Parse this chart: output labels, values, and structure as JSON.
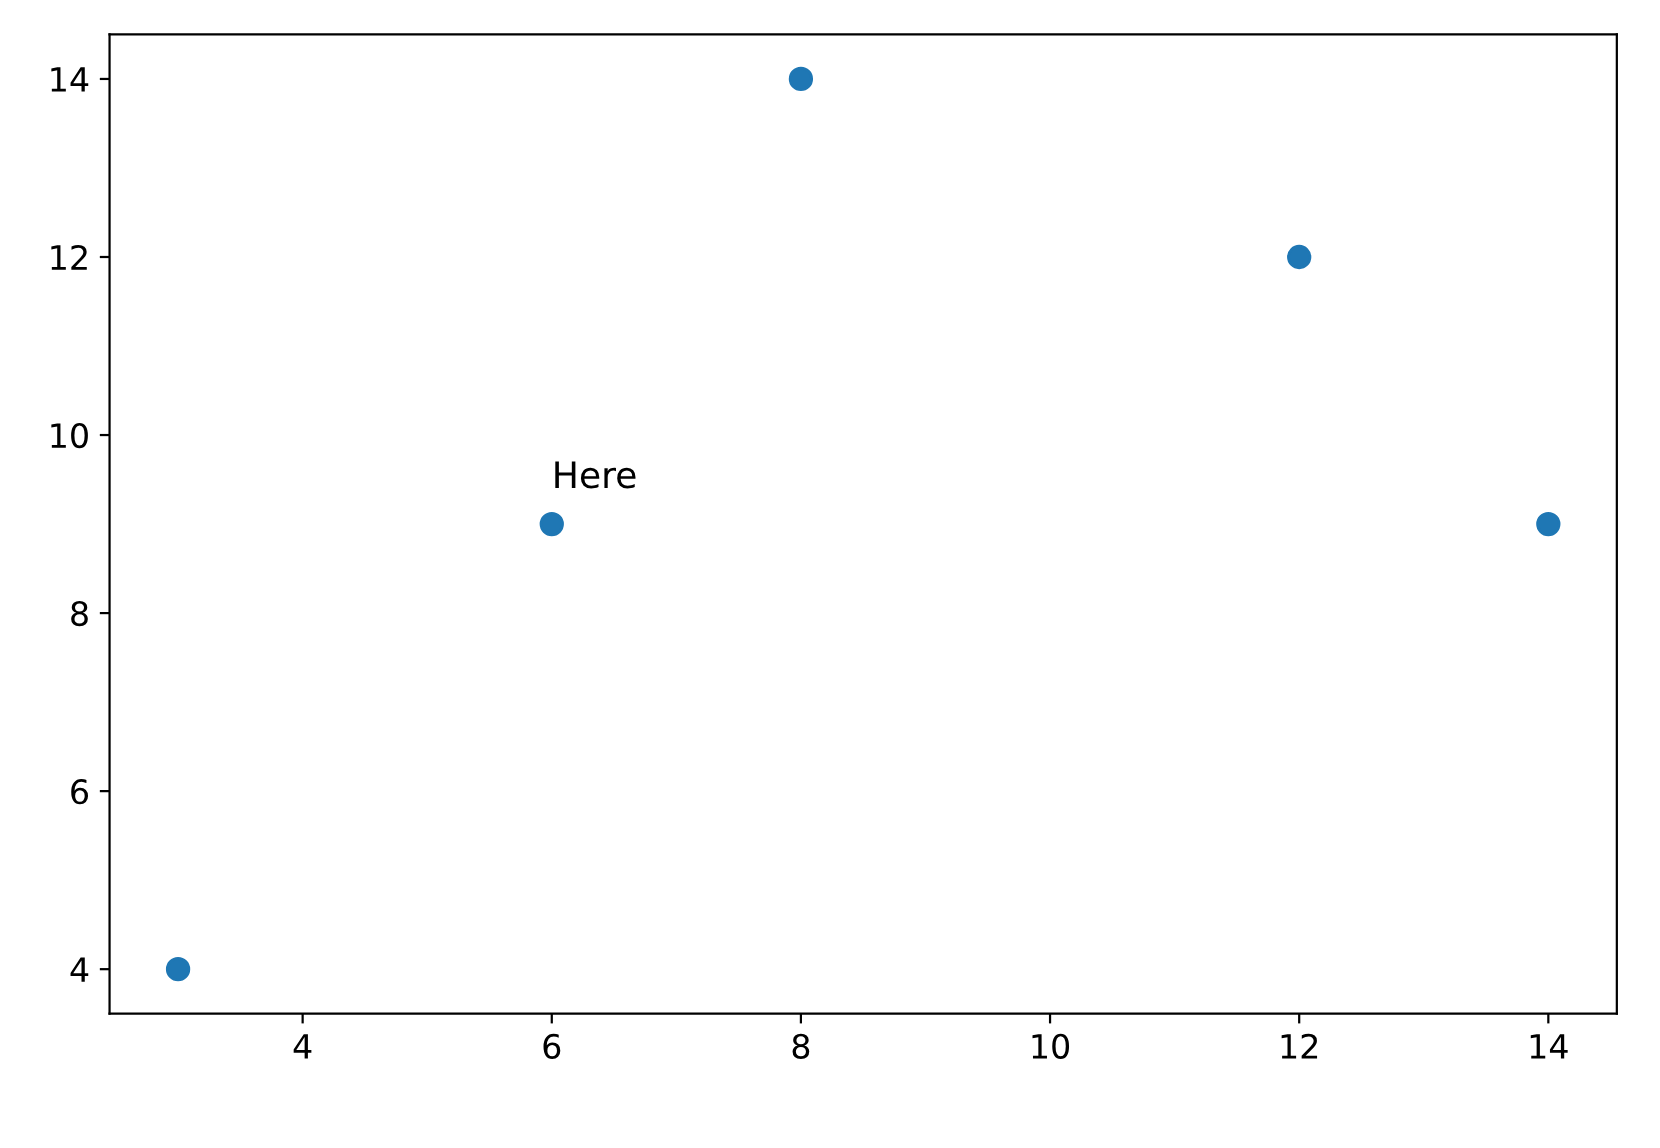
{
  "chart_data": {
    "type": "scatter",
    "x": [
      3,
      6,
      8,
      12,
      14
    ],
    "values": [
      4,
      9,
      14,
      12,
      9
    ],
    "color": "#1f77b4",
    "marker": "circle",
    "xlim": [
      2.45,
      14.55
    ],
    "ylim": [
      3.5,
      14.5
    ],
    "xticks": [
      4,
      6,
      8,
      10,
      12,
      14
    ],
    "yticks": [
      4,
      6,
      8,
      10,
      12,
      14
    ],
    "grid": false,
    "annotations": [
      {
        "text": "Here",
        "x": 6,
        "y": 9
      }
    ]
  }
}
